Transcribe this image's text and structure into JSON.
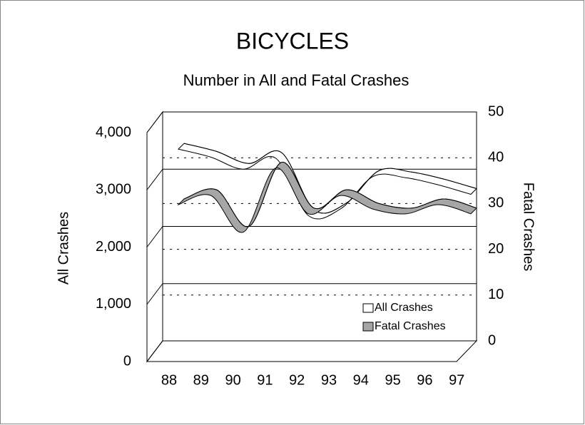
{
  "chart_data": {
    "type": "line",
    "title": "BICYCLES",
    "subtitle": "Number in All and Fatal Crashes",
    "y_label": "All Crashes",
    "y2_label": "Fatal Crashes",
    "categories": [
      "88",
      "89",
      "90",
      "91",
      "92",
      "93",
      "94",
      "95",
      "96",
      "97"
    ],
    "series": [
      {
        "name": "All Crashes",
        "color": "#ffffff",
        "values": [
          3450,
          3310,
          3100,
          3290,
          2290,
          2410,
          2975,
          2950,
          2825,
          2660
        ]
      },
      {
        "name": "Fatal Crashes",
        "color": "#a6a6a6",
        "axis": "y2",
        "values": [
          31,
          33,
          25,
          39,
          29,
          33,
          30,
          29,
          31,
          29
        ]
      }
    ],
    "ylim": [
      0,
      4000
    ],
    "yticks": [
      0,
      {
        "value": 1000,
        "label": "1,000"
      },
      {
        "value": 2000,
        "label": "2,000"
      },
      {
        "value": 3000,
        "label": "3,000"
      },
      {
        "value": 4000,
        "label": "4,000"
      }
    ],
    "y2lim": [
      0,
      50
    ],
    "y2ticks": [
      0,
      10,
      20,
      30,
      40,
      50
    ],
    "legend": "lower right"
  }
}
